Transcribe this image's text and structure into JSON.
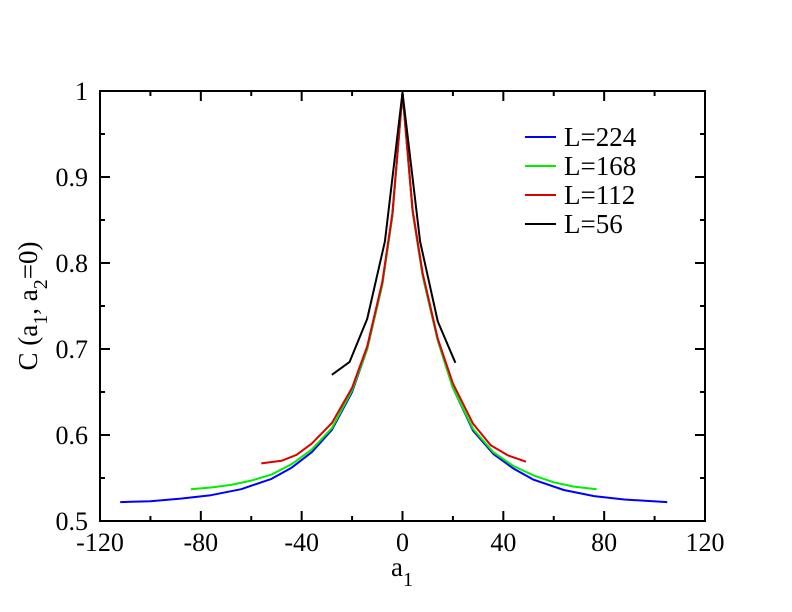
{
  "chart_data": {
    "type": "line",
    "title": "",
    "xlabel": {
      "main": "a",
      "sub": "1"
    },
    "ylabel": {
      "parts": [
        "C (a",
        "1",
        ", a",
        "2",
        "=0)"
      ]
    },
    "xlim": [
      -120,
      120
    ],
    "ylim": [
      0.5,
      1.0
    ],
    "xticks": [
      -120,
      -80,
      -40,
      0,
      40,
      80,
      120
    ],
    "xtick_labels": [
      "-120",
      "-80",
      "-40",
      "0",
      "40",
      "80",
      "120"
    ],
    "yticks": [
      0.5,
      0.6,
      0.7,
      0.8,
      0.9,
      1.0
    ],
    "ytick_labels": [
      "0.5",
      "0.6",
      "0.7",
      "0.8",
      "0.9",
      "1"
    ],
    "grid": false,
    "legend_position": "top-right",
    "series": [
      {
        "name": "L=224",
        "color": "#0000ff",
        "x": [
          -112,
          -100,
          -88,
          -76,
          -64,
          -52,
          -44,
          -36,
          -28,
          -20,
          -14,
          -8,
          -4,
          0,
          4,
          8,
          14,
          20,
          28,
          36,
          44,
          52,
          64,
          76,
          88,
          105
        ],
        "y": [
          0.522,
          0.523,
          0.526,
          0.53,
          0.537,
          0.549,
          0.562,
          0.58,
          0.606,
          0.65,
          0.7,
          0.775,
          0.855,
          0.998,
          0.86,
          0.785,
          0.71,
          0.655,
          0.605,
          0.578,
          0.561,
          0.548,
          0.536,
          0.529,
          0.525,
          0.522
        ]
      },
      {
        "name": "L=168",
        "color": "#00ee00",
        "x": [
          -84,
          -76,
          -68,
          -60,
          -52,
          -44,
          -36,
          -28,
          -20,
          -14,
          -8,
          -4,
          0,
          4,
          8,
          14,
          20,
          28,
          36,
          44,
          52,
          60,
          68,
          77
        ],
        "y": [
          0.537,
          0.539,
          0.542,
          0.547,
          0.554,
          0.566,
          0.583,
          0.608,
          0.652,
          0.7,
          0.775,
          0.855,
          0.998,
          0.86,
          0.785,
          0.71,
          0.655,
          0.607,
          0.58,
          0.564,
          0.553,
          0.545,
          0.54,
          0.537
        ]
      },
      {
        "name": "L=112",
        "color": "#dd0000",
        "x": [
          -56,
          -48,
          -42,
          -36,
          -28,
          -20,
          -14,
          -8,
          -4,
          0,
          4,
          8,
          14,
          20,
          28,
          35,
          42,
          49
        ],
        "y": [
          0.567,
          0.57,
          0.577,
          0.59,
          0.614,
          0.655,
          0.703,
          0.778,
          0.858,
          0.998,
          0.862,
          0.788,
          0.712,
          0.66,
          0.613,
          0.588,
          0.576,
          0.569
        ]
      },
      {
        "name": "L=56",
        "color": "#000000",
        "x": [
          -28,
          -21,
          -14,
          -7,
          0,
          7,
          14,
          21
        ],
        "y": [
          0.67,
          0.685,
          0.735,
          0.825,
          0.998,
          0.825,
          0.732,
          0.684
        ]
      }
    ]
  }
}
